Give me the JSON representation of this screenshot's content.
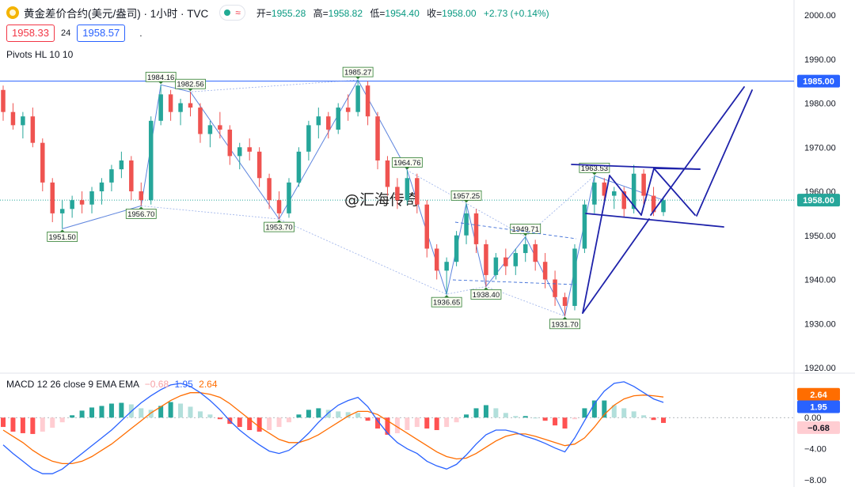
{
  "header": {
    "symbol": "黄金差价合约(美元/盎司)",
    "interval": "· 1小时 · TVC",
    "wave": "≈",
    "open_label": "开=",
    "open": "1955.28",
    "high_label": "高=",
    "high": "1958.82",
    "low_label": "低=",
    "low": "1954.40",
    "close_label": "收=",
    "close": "1958.00",
    "change": "+2.73 (+0.14%)"
  },
  "trade": {
    "sell": "1958.33",
    "spread": "24",
    "buy": "1958.57",
    "dot": "."
  },
  "indicators": {
    "pivots_label": "Pivots HL 10 10"
  },
  "watermark": "@汇海传奇",
  "colors": {
    "up": "#26a69a",
    "down": "#ef5350",
    "trend": "#1e22aa",
    "pivot_line": "#3f6fd8",
    "macd": "#2962ff",
    "signal": "#ff6d00"
  },
  "chart_data": {
    "type": "candlestick",
    "y_axis": {
      "ticks": [
        "2000.00",
        "1990.00",
        "1980.00",
        "1970.00",
        "1960.00",
        "1950.00",
        "1940.00",
        "1930.00",
        "1920.00"
      ],
      "ylim": [
        1920,
        2000
      ]
    },
    "candles": [
      [
        1983,
        1984,
        1976,
        1978
      ],
      [
        1978,
        1980,
        1974,
        1975
      ],
      [
        1975,
        1978,
        1972,
        1977
      ],
      [
        1977,
        1979,
        1970,
        1971
      ],
      [
        1971,
        1972,
        1960,
        1962
      ],
      [
        1962,
        1963,
        1953,
        1955
      ],
      [
        1955,
        1958,
        1951.5,
        1956
      ],
      [
        1956,
        1959,
        1954,
        1958
      ],
      [
        1958,
        1960,
        1955,
        1957
      ],
      [
        1957,
        1961,
        1955,
        1960
      ],
      [
        1960,
        1963,
        1957,
        1962
      ],
      [
        1962,
        1966,
        1960,
        1965
      ],
      [
        1965,
        1969,
        1963,
        1967
      ],
      [
        1967,
        1968,
        1958,
        1960
      ],
      [
        1960,
        1962,
        1956.7,
        1958
      ],
      [
        1958,
        1977,
        1957,
        1976
      ],
      [
        1976,
        1984.16,
        1975,
        1982
      ],
      [
        1982,
        1983,
        1976,
        1978
      ],
      [
        1978,
        1981,
        1975,
        1980
      ],
      [
        1980,
        1982.56,
        1977,
        1979
      ],
      [
        1979,
        1980,
        1971,
        1973
      ],
      [
        1973,
        1976,
        1970,
        1975
      ],
      [
        1975,
        1978,
        1972,
        1974
      ],
      [
        1974,
        1975,
        1966,
        1968
      ],
      [
        1968,
        1971,
        1965,
        1970
      ],
      [
        1970,
        1972,
        1967,
        1969
      ],
      [
        1969,
        1970,
        1961,
        1963
      ],
      [
        1963,
        1964,
        1956,
        1958
      ],
      [
        1958,
        1960,
        1953.7,
        1955
      ],
      [
        1955,
        1963,
        1954,
        1962
      ],
      [
        1962,
        1970,
        1961,
        1969
      ],
      [
        1969,
        1976,
        1967,
        1975
      ],
      [
        1975,
        1979,
        1972,
        1977
      ],
      [
        1977,
        1978,
        1972,
        1974
      ],
      [
        1974,
        1980,
        1973,
        1979
      ],
      [
        1979,
        1982,
        1976,
        1978
      ],
      [
        1978,
        1985.27,
        1977,
        1984
      ],
      [
        1984,
        1985,
        1975,
        1977
      ],
      [
        1977,
        1978,
        1965,
        1967
      ],
      [
        1967,
        1968,
        1959,
        1961
      ],
      [
        1961,
        1963,
        1956,
        1958
      ],
      [
        1958,
        1964.76,
        1957,
        1963
      ],
      [
        1963,
        1964,
        1955,
        1957
      ],
      [
        1957,
        1958,
        1945,
        1947
      ],
      [
        1947,
        1948,
        1940,
        1942
      ],
      [
        1942,
        1945,
        1936.65,
        1944
      ],
      [
        1944,
        1951,
        1943,
        1950
      ],
      [
        1950,
        1957.25,
        1948,
        1955
      ],
      [
        1955,
        1956,
        1946,
        1948
      ],
      [
        1948,
        1949,
        1938.4,
        1941
      ],
      [
        1941,
        1946,
        1940,
        1945
      ],
      [
        1945,
        1947,
        1941,
        1943
      ],
      [
        1943,
        1947,
        1941,
        1946
      ],
      [
        1946,
        1949.71,
        1944,
        1948
      ],
      [
        1948,
        1949,
        1942,
        1944
      ],
      [
        1944,
        1946,
        1938,
        1940
      ],
      [
        1940,
        1942,
        1934,
        1936
      ],
      [
        1936,
        1937,
        1931.7,
        1934
      ],
      [
        1934,
        1948,
        1933,
        1947
      ],
      [
        1947,
        1958,
        1946,
        1957
      ],
      [
        1957,
        1963.53,
        1955,
        1962
      ],
      [
        1962,
        1963,
        1957,
        1959
      ],
      [
        1959,
        1961,
        1956,
        1960
      ],
      [
        1960,
        1961,
        1954,
        1956
      ],
      [
        1956,
        1966,
        1955,
        1964
      ],
      [
        1964,
        1965,
        1957,
        1959
      ],
      [
        1959,
        1961,
        1954.4,
        1955.28
      ],
      [
        1955.28,
        1958.82,
        1954.4,
        1958
      ]
    ],
    "pivots": [
      {
        "label": "1984.16",
        "value": 1984.16,
        "type": "high",
        "index": 16
      },
      {
        "label": "1982.56",
        "value": 1982.56,
        "type": "high",
        "index": 19
      },
      {
        "label": "1985.27",
        "value": 1985.27,
        "type": "high",
        "index": 36
      },
      {
        "label": "1964.76",
        "value": 1964.76,
        "type": "high",
        "index": 41
      },
      {
        "label": "1957.25",
        "value": 1957.25,
        "type": "high",
        "index": 47
      },
      {
        "label": "1949.71",
        "value": 1949.71,
        "type": "high",
        "index": 53
      },
      {
        "label": "1963.53",
        "value": 1963.53,
        "type": "high",
        "index": 60
      },
      {
        "label": "1951.50",
        "value": 1951.5,
        "type": "low",
        "index": 6
      },
      {
        "label": "1956.70",
        "value": 1956.7,
        "type": "low",
        "index": 14
      },
      {
        "label": "1953.70",
        "value": 1953.7,
        "type": "low",
        "index": 28
      },
      {
        "label": "1936.65",
        "value": 1936.65,
        "type": "low",
        "index": 45
      },
      {
        "label": "1938.40",
        "value": 1938.4,
        "type": "low",
        "index": 49
      },
      {
        "label": "1931.70",
        "value": 1931.7,
        "type": "low",
        "index": 57
      }
    ],
    "horizontal_line": {
      "value": 1985.0,
      "label": "1985.00"
    },
    "last_price": {
      "value": 1958.0,
      "label": "1958.00"
    },
    "macd": {
      "label": "MACD 12 26 close 9 EMA EMA",
      "hist_label": "−0.68",
      "macd_label": "1.95",
      "signal_label": "2.64",
      "hist_value": -0.68,
      "macd_value": 1.95,
      "signal_value": 2.64,
      "axis_ticks": [
        "0.00",
        "−4.00",
        "−8.00"
      ],
      "ylim": [
        -8.5,
        5.2
      ],
      "hist": [
        -1.2,
        -1.8,
        -2.0,
        -2.1,
        -1.8,
        -1.3,
        -0.6,
        0.3,
        0.9,
        1.3,
        1.5,
        1.8,
        1.9,
        1.7,
        1.2,
        1.0,
        1.5,
        2.0,
        1.8,
        1.4,
        0.8,
        0.4,
        -0.2,
        -0.8,
        -1.2,
        -1.6,
        -1.8,
        -1.6,
        -1.2,
        -0.6,
        0.4,
        1.0,
        1.2,
        1.0,
        0.8,
        0.7,
        0.6,
        -0.4,
        -1.4,
        -2.2,
        -2.0,
        -1.6,
        -1.2,
        -1.4,
        -1.6,
        -1.2,
        -0.6,
        0.4,
        1.2,
        1.6,
        1.2,
        0.6,
        0.2,
        0.2,
        0.0,
        -0.4,
        -1.0,
        -1.4,
        -0.2,
        1.2,
        2.2,
        2.2,
        1.6,
        1.2,
        0.8,
        0.3,
        -0.3,
        -0.68
      ],
      "macd_line": [
        -3.5,
        -4.6,
        -5.6,
        -6.6,
        -7.2,
        -7.2,
        -6.6,
        -5.6,
        -4.6,
        -3.6,
        -2.6,
        -1.6,
        -0.4,
        0.8,
        1.9,
        2.8,
        3.6,
        4.2,
        4.4,
        4.0,
        3.2,
        2.2,
        1.0,
        -0.4,
        -1.6,
        -2.6,
        -3.5,
        -4.3,
        -4.6,
        -4.2,
        -3.2,
        -2.0,
        -0.6,
        0.6,
        1.6,
        2.2,
        2.6,
        1.4,
        -0.4,
        -2.0,
        -3.2,
        -4.0,
        -4.6,
        -5.6,
        -6.2,
        -6.6,
        -6.0,
        -4.8,
        -3.4,
        -2.2,
        -1.6,
        -1.6,
        -1.9,
        -2.4,
        -2.8,
        -3.3,
        -3.9,
        -4.4,
        -2.6,
        -0.4,
        1.8,
        3.4,
        4.4,
        4.6,
        4.0,
        3.2,
        2.4,
        1.95
      ],
      "signal_line": [
        -1.6,
        -2.4,
        -3.2,
        -4.2,
        -5.0,
        -5.6,
        -5.9,
        -5.9,
        -5.6,
        -5.0,
        -4.2,
        -3.4,
        -2.4,
        -1.4,
        -0.4,
        0.6,
        1.4,
        2.2,
        2.8,
        3.2,
        3.2,
        3.0,
        2.6,
        1.8,
        0.8,
        -0.2,
        -1.2,
        -2.0,
        -2.8,
        -3.2,
        -3.2,
        -2.8,
        -2.2,
        -1.4,
        -0.6,
        0.2,
        0.8,
        0.8,
        0.4,
        -0.4,
        -1.2,
        -2.0,
        -2.8,
        -3.6,
        -4.4,
        -5.0,
        -5.3,
        -5.2,
        -4.6,
        -3.8,
        -3.0,
        -2.4,
        -2.1,
        -2.1,
        -2.4,
        -2.8,
        -3.2,
        -3.6,
        -3.4,
        -2.6,
        -1.2,
        0.4,
        1.6,
        2.4,
        2.8,
        2.9,
        2.8,
        2.64
      ]
    }
  }
}
